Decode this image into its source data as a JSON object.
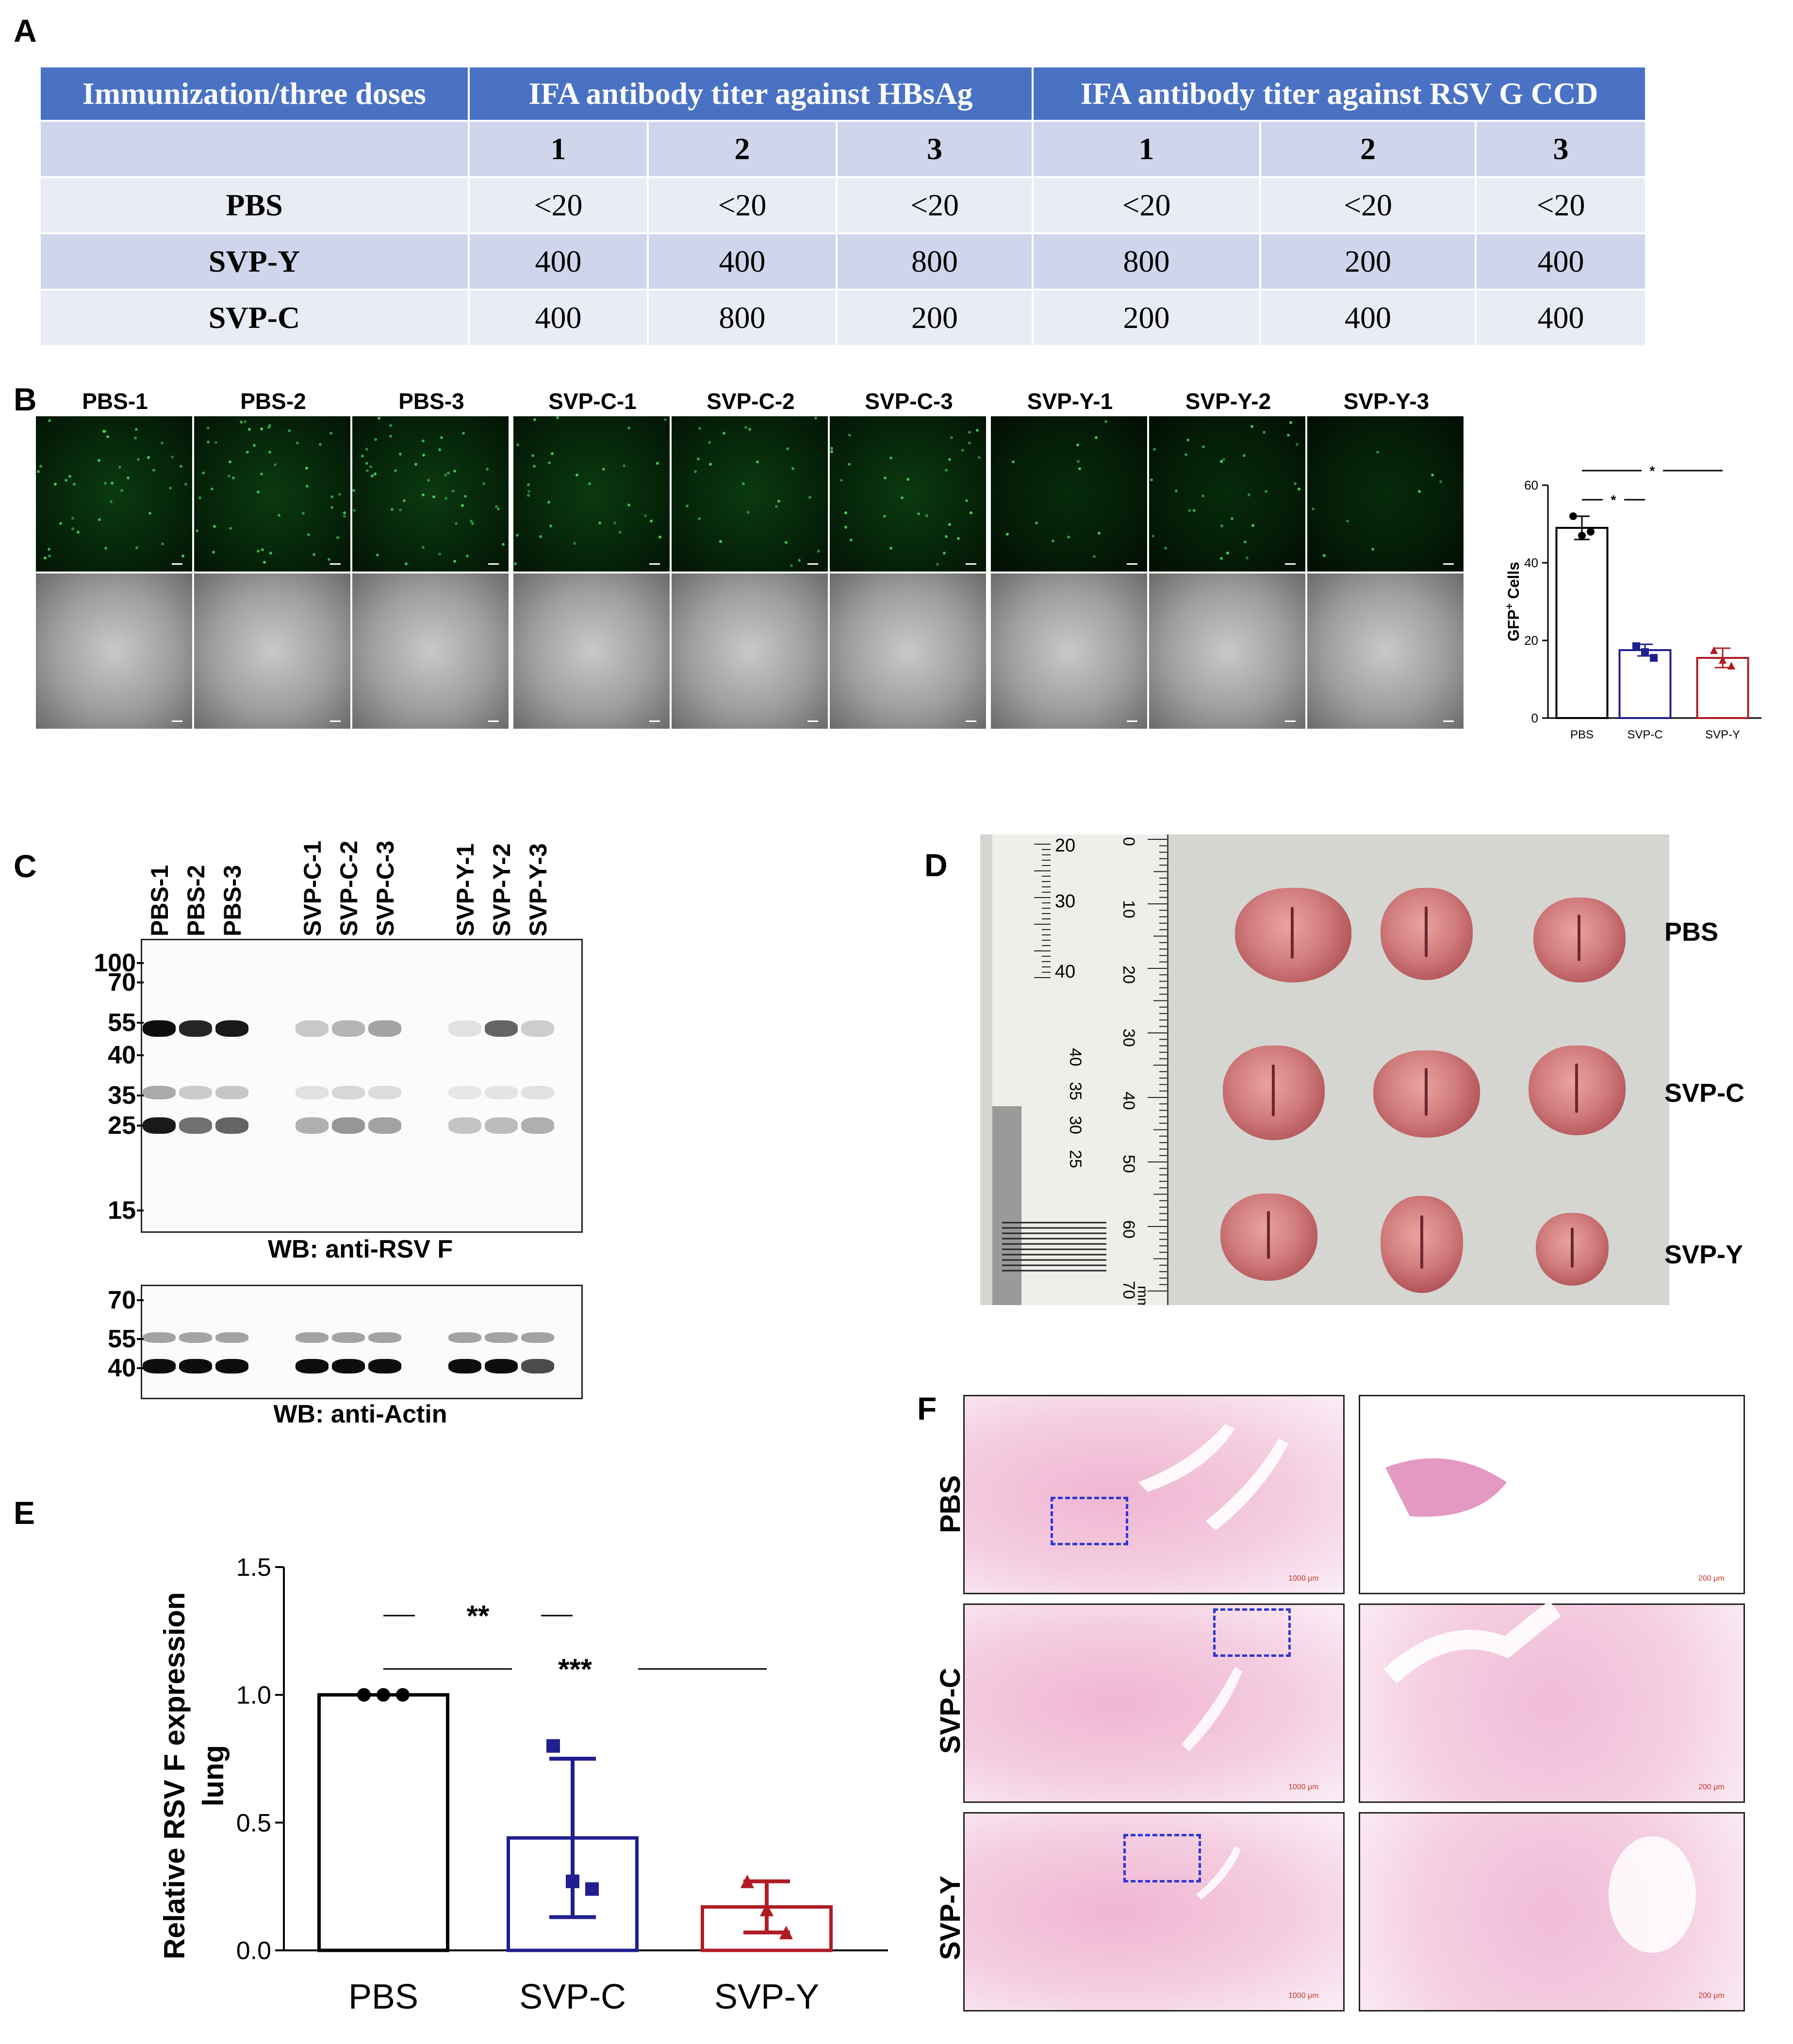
{
  "panels": {
    "a": "A",
    "b": "B",
    "c": "C",
    "d": "D",
    "e": "E",
    "f": "F"
  },
  "table": {
    "header": [
      "Immunization/three doses",
      "IFA antibody titer against HBsAg",
      "IFA antibody titer against RSV G CCD"
    ],
    "subheader": [
      "",
      "1",
      "2",
      "3",
      "1",
      "2",
      "3"
    ],
    "rows": [
      {
        "label": "PBS",
        "values": [
          "<20",
          "<20",
          "<20",
          "<20",
          "<20",
          "<20"
        ]
      },
      {
        "label": "SVP-Y",
        "values": [
          "400",
          "400",
          "800",
          "800",
          "200",
          "400"
        ]
      },
      {
        "label": "SVP-C",
        "values": [
          "400",
          "800",
          "200",
          "200",
          "400",
          "400"
        ]
      }
    ]
  },
  "micrographs": {
    "labels": [
      "PBS-1",
      "PBS-2",
      "PBS-3",
      "SVP-C-1",
      "SVP-C-2",
      "SVP-C-3",
      "SVP-Y-1",
      "SVP-Y-2",
      "SVP-Y-3"
    ]
  },
  "western": {
    "lanes": [
      "PBS-1",
      "PBS-2",
      "PBS-3",
      "SVP-C-1",
      "SVP-C-2",
      "SVP-C-3",
      "SVP-Y-1",
      "SVP-Y-2",
      "SVP-Y-3"
    ],
    "rsvf_markers": [
      "100",
      "70",
      "55",
      "40",
      "35",
      "25",
      "15"
    ],
    "actin_markers": [
      "70",
      "55",
      "40"
    ],
    "rsvf_caption": "WB: anti-RSV F",
    "actin_caption": "WB: anti-Actin"
  },
  "photo": {
    "group_labels": [
      "PBS",
      "SVP-C",
      "SVP-Y"
    ],
    "ruler_top": [
      "20",
      "30",
      "40"
    ],
    "ruler_mid": [
      "40",
      "35",
      "30",
      "25"
    ],
    "ruler_side": [
      "0",
      "10",
      "20",
      "30",
      "40",
      "50",
      "60",
      "70"
    ],
    "ruler_unit": "mm"
  },
  "histology": {
    "row_labels": [
      "PBS",
      "SVP-C",
      "SVP-Y"
    ],
    "scale_low": "1000 μm",
    "scale_high": "200 μm"
  },
  "colors": {
    "PBS": "#000000",
    "SVP-C": "#1f1f8f",
    "SVP-Y": "#b01c24",
    "table_header": "#4a72c4"
  },
  "chart_data": [
    {
      "type": "bar",
      "panel": "B",
      "categories": [
        "PBS",
        "SVP-C",
        "SVP-Y"
      ],
      "values": [
        49,
        17.5,
        15.5
      ],
      "errors": [
        3,
        1.5,
        2.5
      ],
      "points": [
        [
          52,
          47,
          48
        ],
        [
          18.5,
          17,
          15.5
        ],
        [
          17.5,
          15,
          13.5
        ]
      ],
      "ylabel": "GFP+ Cells",
      "ylabel_main": "GFP",
      "ylabel_sup": "+",
      "ylabel_rest": " Cells",
      "yticks": [
        0,
        20,
        40,
        60
      ],
      "ylim": [
        0,
        60
      ],
      "significance": [
        {
          "from": "PBS",
          "to": "SVP-C",
          "label": "*"
        },
        {
          "from": "PBS",
          "to": "SVP-Y",
          "label": "*"
        }
      ]
    },
    {
      "type": "bar",
      "panel": "E",
      "categories": [
        "PBS",
        "SVP-C",
        "SVP-Y"
      ],
      "values": [
        1.0,
        0.44,
        0.17
      ],
      "errors": [
        0.0,
        0.31,
        0.1
      ],
      "points": [
        [
          1.0,
          1.0,
          1.0
        ],
        [
          0.8,
          0.27,
          0.24
        ],
        [
          0.27,
          0.16,
          0.07
        ]
      ],
      "ylabel": "Relative RSV F expression",
      "ylabel2": "lung",
      "yticks": [
        "0.0",
        "0.5",
        "1.0",
        "1.5"
      ],
      "ylim": [
        0,
        1.5
      ],
      "significance": [
        {
          "from": "PBS",
          "to": "SVP-C",
          "label": "**"
        },
        {
          "from": "PBS",
          "to": "SVP-Y",
          "label": "***"
        }
      ]
    }
  ]
}
